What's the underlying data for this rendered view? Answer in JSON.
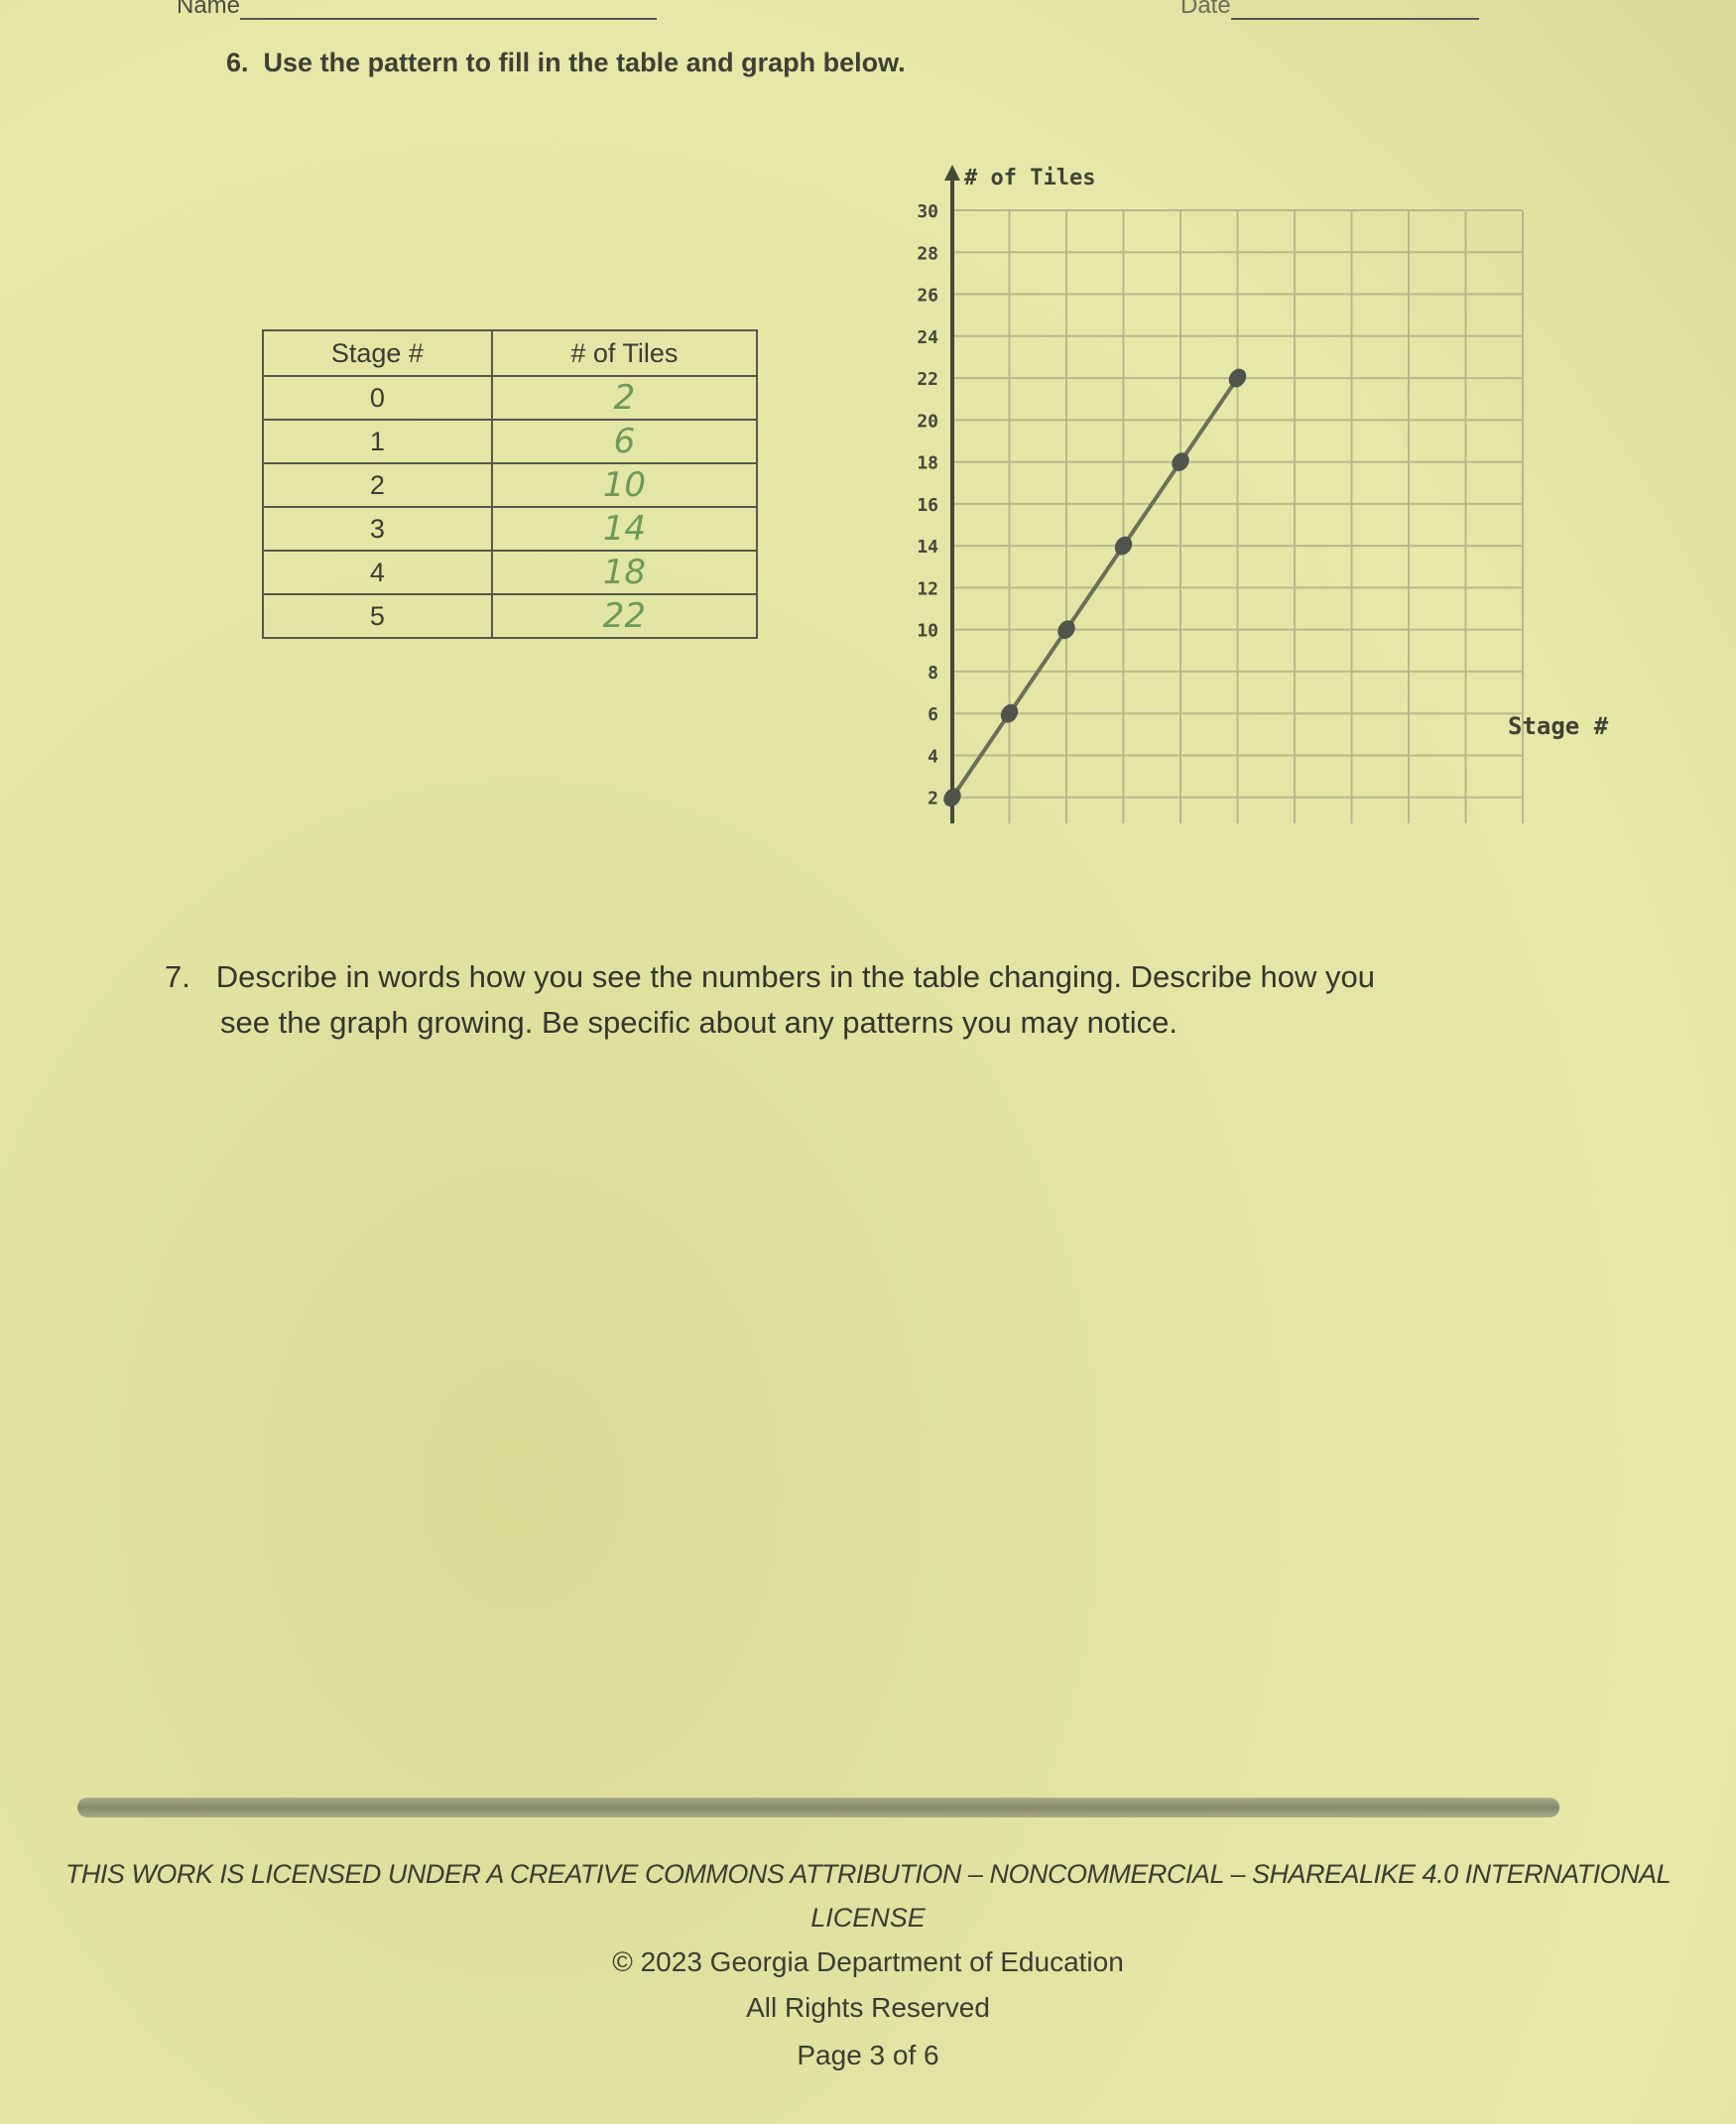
{
  "header": {
    "name_label": "Name",
    "date_label": "Date"
  },
  "question6": {
    "number": "6.",
    "text": "Use the pattern to fill in the table and graph below."
  },
  "table": {
    "headers": [
      "Stage #",
      "# of Tiles"
    ],
    "rows": [
      [
        "0",
        "2"
      ],
      [
        "1",
        "6"
      ],
      [
        "2",
        "10"
      ],
      [
        "3",
        "14"
      ],
      [
        "4",
        "18"
      ],
      [
        "5",
        "22"
      ]
    ]
  },
  "chart_data": {
    "type": "line",
    "xlabel": "Stage #",
    "ylabel": "# of Tiles",
    "xlim": [
      0,
      10
    ],
    "ylim": [
      0,
      30
    ],
    "xticks": [
      "1",
      "2",
      "3",
      "4",
      "5",
      "6",
      "7",
      "8",
      "9",
      "10"
    ],
    "yticks": [
      "2",
      "4",
      "6",
      "8",
      "10",
      "12",
      "14",
      "16",
      "18",
      "20",
      "22",
      "24",
      "26",
      "28",
      "30"
    ],
    "grid": true,
    "x": [
      0,
      1,
      2,
      3,
      4,
      5
    ],
    "y": [
      2,
      6,
      10,
      14,
      18,
      22
    ]
  },
  "question7": {
    "number": "7.",
    "line1": "Describe in words how you see the numbers in the table changing. Describe how you",
    "line2": "see the graph growing.  Be specific about any patterns you may notice."
  },
  "footer": {
    "license1": "THIS WORK IS LICENSED UNDER A CREATIVE COMMONS ATTRIBUTION – NONCOMMERCIAL – SHAREALIKE 4.0 INTERNATIONAL",
    "license2": "LICENSE",
    "copyright": "© 2023 Georgia Department of Education",
    "rights": "All Rights Reserved",
    "page": "Page 3 of 6"
  }
}
